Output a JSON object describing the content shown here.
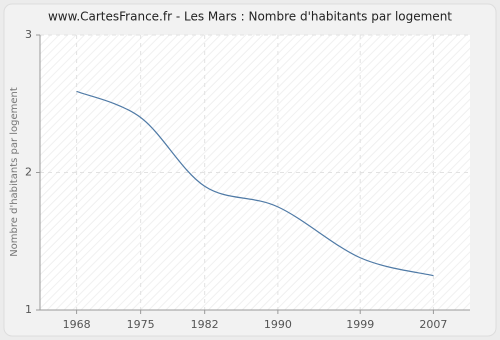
{
  "chart_data": {
    "type": "line",
    "title": "www.CartesFrance.fr - Les Mars : Nombre d'habitants par logement",
    "y_label": "Nombre d'habitants par logement",
    "x": [
      1968,
      1975,
      1982,
      1990,
      1999,
      2007
    ],
    "series": [
      {
        "name": "Nombre d'habitants par logement",
        "color": "#4f7aa6",
        "values": [
          2.59,
          2.4,
          1.9,
          1.75,
          1.38,
          1.25
        ]
      }
    ],
    "xlim": [
      1964,
      2011
    ],
    "xticks": [
      1968,
      1975,
      1982,
      1990,
      1999,
      2007
    ],
    "ylim": [
      1,
      3
    ],
    "yticks": [
      1,
      2,
      3
    ],
    "grid": true
  }
}
